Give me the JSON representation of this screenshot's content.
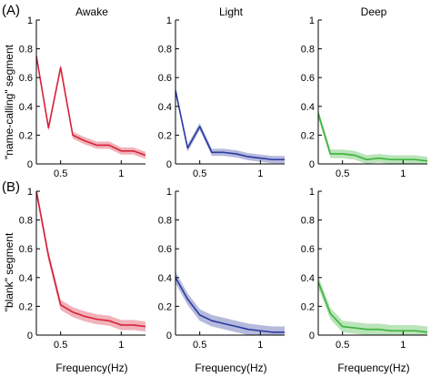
{
  "figure": {
    "panel_labels": [
      "(A)",
      "(B)"
    ],
    "column_titles": [
      "Awake",
      "Light",
      "Deep"
    ],
    "row_ylabels": [
      "\"name-calling\" segment",
      "\"blank\" segment"
    ],
    "xlabel": "Frequency(Hz)"
  },
  "colors": {
    "awake": "#d8223a",
    "light": "#2b3a9e",
    "deep": "#3ab33a"
  },
  "chart_data": [
    {
      "type": "line",
      "row": "A",
      "column": "Awake",
      "color_key": "awake",
      "x": [
        0.3,
        0.4,
        0.5,
        0.6,
        0.7,
        0.8,
        0.9,
        1.0,
        1.1,
        1.2
      ],
      "y": [
        0.75,
        0.25,
        0.67,
        0.2,
        0.16,
        0.13,
        0.13,
        0.09,
        0.09,
        0.06
      ],
      "band": 0.025,
      "xlim": [
        0.3,
        1.2
      ],
      "ylim": [
        0,
        1
      ],
      "xticks": [
        0.5,
        1
      ],
      "yticks": [
        0,
        0.2,
        0.4,
        0.6,
        0.8,
        1
      ],
      "ytick_labels": [
        "0",
        "0.2",
        "0.4",
        "0.6",
        "0.8",
        "1"
      ]
    },
    {
      "type": "line",
      "row": "A",
      "column": "Light",
      "color_key": "light",
      "x": [
        0.3,
        0.4,
        0.5,
        0.6,
        0.7,
        0.8,
        0.9,
        1.0,
        1.1,
        1.2
      ],
      "y": [
        0.51,
        0.11,
        0.26,
        0.08,
        0.08,
        0.07,
        0.05,
        0.04,
        0.03,
        0.03
      ],
      "band": 0.025,
      "xlim": [
        0.3,
        1.2
      ],
      "ylim": [
        0,
        1
      ],
      "xticks": [
        0.5,
        1
      ],
      "yticks": [
        0,
        0.2,
        0.4,
        0.6,
        0.8,
        1
      ],
      "ytick_labels": [
        "0",
        "0.2",
        "0.4",
        "0.6",
        "0.8",
        "1"
      ]
    },
    {
      "type": "line",
      "row": "A",
      "column": "Deep",
      "color_key": "deep",
      "x": [
        0.3,
        0.4,
        0.5,
        0.6,
        0.7,
        0.8,
        0.9,
        1.0,
        1.1,
        1.2
      ],
      "y": [
        0.35,
        0.07,
        0.07,
        0.06,
        0.03,
        0.04,
        0.03,
        0.03,
        0.03,
        0.02
      ],
      "band": 0.03,
      "xlim": [
        0.3,
        1.2
      ],
      "ylim": [
        0,
        1
      ],
      "xticks": [
        0.5,
        1
      ],
      "yticks": [
        0,
        0.2,
        0.4,
        0.6,
        0.8,
        1
      ],
      "ytick_labels": [
        "0",
        "0.2",
        "0.4",
        "0.6",
        "0.8",
        "1"
      ]
    },
    {
      "type": "line",
      "row": "B",
      "column": "Awake",
      "color_key": "awake",
      "x": [
        0.3,
        0.4,
        0.5,
        0.6,
        0.7,
        0.8,
        0.9,
        1.0,
        1.1,
        1.2
      ],
      "y": [
        1.0,
        0.55,
        0.21,
        0.16,
        0.13,
        0.11,
        0.1,
        0.07,
        0.07,
        0.06
      ],
      "band": 0.035,
      "xlim": [
        0.3,
        1.2
      ],
      "ylim": [
        0,
        1
      ],
      "xticks": [
        0.5,
        1
      ],
      "yticks": [
        0,
        0.2,
        0.4,
        0.6,
        0.8,
        1
      ],
      "ytick_labels": [
        "0",
        "0.2",
        "0.4",
        "0.6",
        "0.8",
        "1"
      ]
    },
    {
      "type": "line",
      "row": "B",
      "column": "Light",
      "color_key": "light",
      "x": [
        0.3,
        0.4,
        0.5,
        0.6,
        0.7,
        0.8,
        0.9,
        1.0,
        1.1,
        1.2
      ],
      "y": [
        0.4,
        0.25,
        0.14,
        0.1,
        0.08,
        0.06,
        0.04,
        0.03,
        0.02,
        0.02
      ],
      "band": 0.04,
      "xlim": [
        0.3,
        1.2
      ],
      "ylim": [
        0,
        1
      ],
      "xticks": [
        0.5,
        1
      ],
      "yticks": [
        0,
        0.2,
        0.4,
        0.6,
        0.8,
        1
      ],
      "ytick_labels": [
        "0",
        "0.2",
        "0.4",
        "0.6",
        "0.8",
        "1"
      ]
    },
    {
      "type": "line",
      "row": "B",
      "column": "Deep",
      "color_key": "deep",
      "x": [
        0.3,
        0.4,
        0.5,
        0.6,
        0.7,
        0.8,
        0.9,
        1.0,
        1.1,
        1.2
      ],
      "y": [
        0.37,
        0.15,
        0.06,
        0.05,
        0.04,
        0.04,
        0.03,
        0.03,
        0.03,
        0.02
      ],
      "band": 0.04,
      "xlim": [
        0.3,
        1.2
      ],
      "ylim": [
        0,
        1
      ],
      "xticks": [
        0.5,
        1
      ],
      "yticks": [
        0,
        0.2,
        0.4,
        0.6,
        0.8,
        1
      ],
      "ytick_labels": [
        "0",
        "0.2",
        "0.4",
        "0.6",
        "0.8",
        "1"
      ]
    }
  ]
}
